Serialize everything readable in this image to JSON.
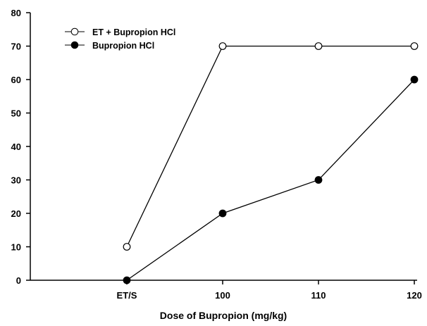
{
  "chart_data": {
    "type": "line",
    "title": "",
    "xlabel": "Dose of Bupropion (mg/kg)",
    "ylabel": "",
    "categories": [
      "ET/S",
      "100",
      "110",
      "120"
    ],
    "ylim": [
      0,
      80
    ],
    "yticks": [
      "0",
      "10",
      "20",
      "30",
      "40",
      "50",
      "60",
      "70",
      "80"
    ],
    "grid": false,
    "legend_position": "top-left",
    "series": [
      {
        "name": "ET + Bupropion HCl",
        "marker": "open-circle",
        "values": [
          10,
          70,
          70,
          70
        ]
      },
      {
        "name": "Bupropion HCl",
        "marker": "filled-circle",
        "values": [
          0,
          20,
          30,
          60
        ]
      }
    ]
  }
}
